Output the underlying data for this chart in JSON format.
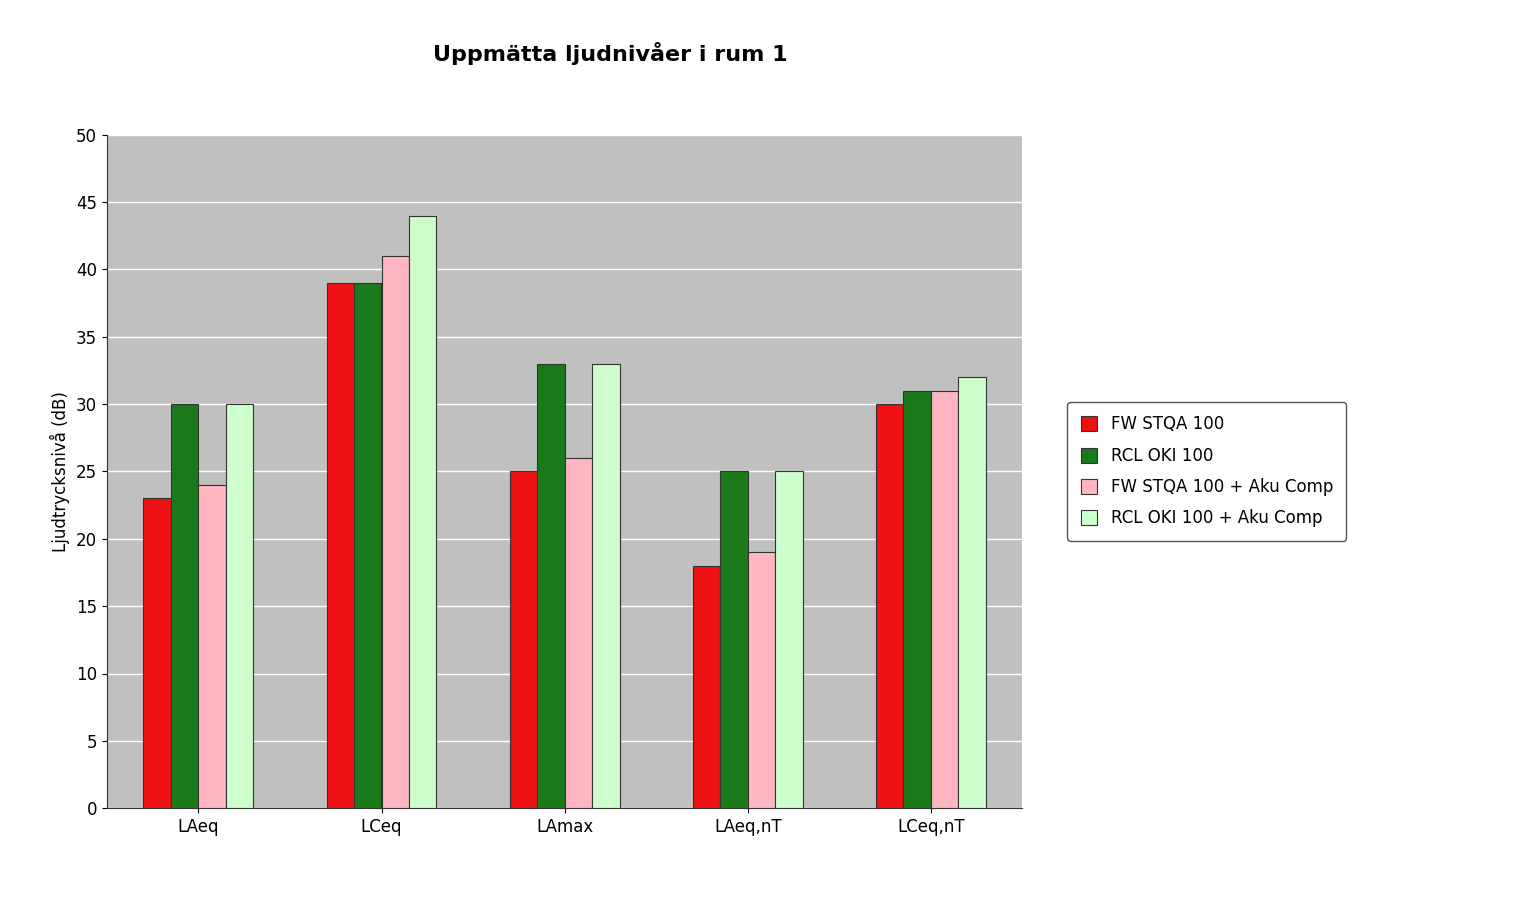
{
  "title": "Uppmätta ljudnivåer i rum 1",
  "ylabel": "Ljudtrycksnivå (dB)",
  "categories": [
    "LAeq",
    "LCeq",
    "LAmax",
    "LAeq,nT",
    "LCeq,nT"
  ],
  "series": [
    {
      "label": "FW STQA 100",
      "color": "#EE1111",
      "edgecolor": "#333333",
      "values": [
        23,
        39,
        25,
        18,
        30
      ]
    },
    {
      "label": "RCL OKI 100",
      "color": "#1A7A1A",
      "edgecolor": "#333333",
      "values": [
        30,
        39,
        33,
        25,
        31
      ]
    },
    {
      "label": "FW STQA 100 + Aku Comp",
      "color": "#FFB6C1",
      "edgecolor": "#333333",
      "values": [
        24,
        41,
        26,
        19,
        31
      ]
    },
    {
      "label": "RCL OKI 100 + Aku Comp",
      "color": "#CCFFCC",
      "edgecolor": "#333333",
      "values": [
        30,
        44,
        33,
        25,
        32
      ]
    }
  ],
  "ylim": [
    0,
    50
  ],
  "yticks": [
    0,
    5,
    10,
    15,
    20,
    25,
    30,
    35,
    40,
    45,
    50
  ],
  "plot_bg_color": "#C0C0C0",
  "fig_bg_color": "#FFFFFF",
  "grid_color": "#FFFFFF",
  "bar_width": 0.15,
  "title_fontsize": 16,
  "axis_label_fontsize": 12,
  "tick_fontsize": 12,
  "legend_fontsize": 12
}
